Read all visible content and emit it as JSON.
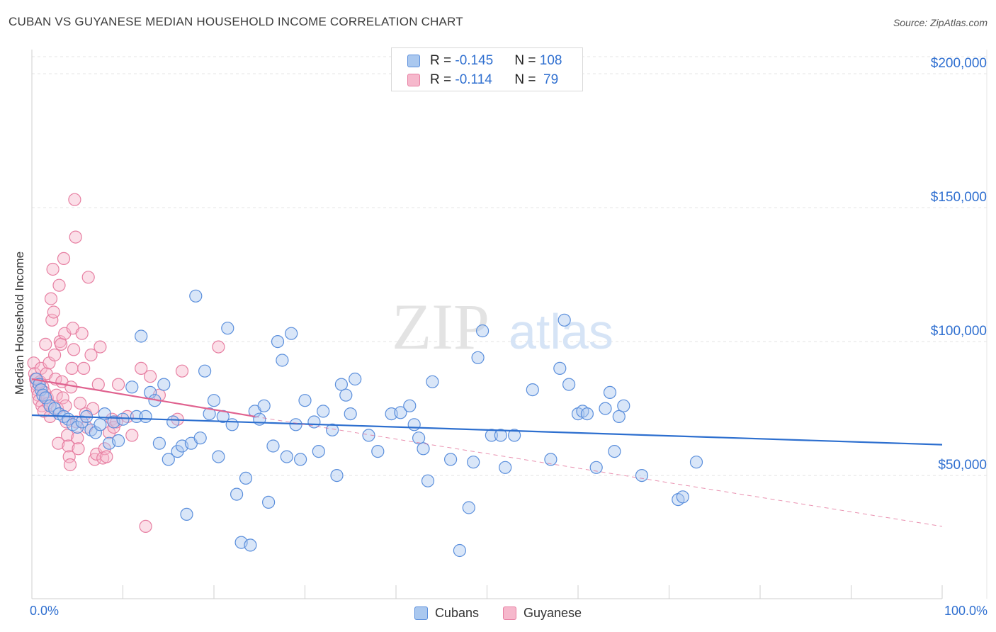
{
  "title": "CUBAN VS GUYANESE MEDIAN HOUSEHOLD INCOME CORRELATION CHART",
  "source": "Source: ZipAtlas.com",
  "watermark": {
    "zip": "ZIP",
    "atlas": "atlas"
  },
  "legend": {
    "rows": [
      {
        "r_label": "R = ",
        "r_value": "-0.145",
        "n_label": "N = ",
        "n_value": "108"
      },
      {
        "r_label": "R = ",
        "r_value": "-0.114",
        "n_label": "N = ",
        "n_value": " 79"
      }
    ]
  },
  "x_axis": {
    "min_label": "0.0%",
    "max_label": "100.0%"
  },
  "series_legend": {
    "cubans": "Cubans",
    "guyanese": "Guyanese"
  },
  "colors": {
    "cubans_fill": "#aac8ef",
    "cubans_stroke": "#5b8fdc",
    "cubans_line": "#2d6fcf",
    "guyanese_fill": "#f6b8cc",
    "guyanese_stroke": "#e77fa2",
    "guyanese_line": "#e0628f",
    "grid": "#e4e4e4",
    "tick_text": "#2f6fd0"
  },
  "chart_data": {
    "type": "scatter",
    "title": "CUBAN VS GUYANESE MEDIAN HOUSEHOLD INCOME CORRELATION CHART",
    "xlabel": "",
    "ylabel": "Median Household Income",
    "xlim": [
      0,
      100
    ],
    "ylim": [
      4000,
      209000
    ],
    "y_ticks": [
      {
        "value": 50000,
        "label": "$50,000"
      },
      {
        "value": 100000,
        "label": "$100,000"
      },
      {
        "value": 150000,
        "label": "$150,000"
      },
      {
        "value": 200000,
        "label": "$200,000"
      }
    ],
    "x_tick_values": [
      0,
      10,
      20,
      30,
      40,
      50,
      60,
      70,
      80,
      90,
      100
    ],
    "series": [
      {
        "name": "Cubans",
        "r": -0.145,
        "n": 108,
        "trend": {
          "x0": 0,
          "y0": 72500,
          "x1": 100,
          "y1": 61500
        },
        "points": [
          [
            0.5,
            86000
          ],
          [
            0.8,
            84000
          ],
          [
            1,
            82000
          ],
          [
            1.2,
            80000
          ],
          [
            1.5,
            79000
          ],
          [
            2,
            76000
          ],
          [
            2.5,
            75000
          ],
          [
            3,
            73000
          ],
          [
            3.5,
            72000
          ],
          [
            4,
            71000
          ],
          [
            4.5,
            69000
          ],
          [
            5,
            68000
          ],
          [
            5.5,
            70000
          ],
          [
            6,
            72000
          ],
          [
            6.5,
            67000
          ],
          [
            7,
            66000
          ],
          [
            7.5,
            69000
          ],
          [
            8,
            73000
          ],
          [
            8.5,
            62000
          ],
          [
            9,
            70000
          ],
          [
            9.5,
            63000
          ],
          [
            10,
            71000
          ],
          [
            11,
            83000
          ],
          [
            11.5,
            72000
          ],
          [
            12,
            102000
          ],
          [
            12.5,
            72000
          ],
          [
            13,
            81000
          ],
          [
            13.5,
            78000
          ],
          [
            14,
            62000
          ],
          [
            14.5,
            84000
          ],
          [
            15,
            56000
          ],
          [
            15.5,
            70000
          ],
          [
            16,
            59000
          ],
          [
            16.5,
            61000
          ],
          [
            17,
            35500
          ],
          [
            17.5,
            62000
          ],
          [
            18,
            117000
          ],
          [
            18.5,
            64000
          ],
          [
            19,
            89000
          ],
          [
            19.5,
            73000
          ],
          [
            20,
            78000
          ],
          [
            20.5,
            57000
          ],
          [
            21,
            72000
          ],
          [
            21.5,
            105000
          ],
          [
            22,
            69000
          ],
          [
            22.5,
            43000
          ],
          [
            23,
            25000
          ],
          [
            23.5,
            49000
          ],
          [
            24,
            24000
          ],
          [
            24.5,
            74000
          ],
          [
            25,
            71000
          ],
          [
            25.5,
            76000
          ],
          [
            26,
            40000
          ],
          [
            26.5,
            61000
          ],
          [
            27,
            100000
          ],
          [
            27.5,
            93000
          ],
          [
            28,
            57000
          ],
          [
            28.5,
            103000
          ],
          [
            29,
            69000
          ],
          [
            29.5,
            56000
          ],
          [
            30,
            78000
          ],
          [
            31,
            70000
          ],
          [
            31.5,
            59000
          ],
          [
            32,
            74000
          ],
          [
            33,
            67000
          ],
          [
            33.5,
            50000
          ],
          [
            34,
            84000
          ],
          [
            34.5,
            80000
          ],
          [
            35,
            73000
          ],
          [
            35.5,
            86000
          ],
          [
            37,
            65000
          ],
          [
            38,
            59000
          ],
          [
            39.5,
            73000
          ],
          [
            40.5,
            73500
          ],
          [
            41.5,
            76000
          ],
          [
            42,
            69000
          ],
          [
            42.5,
            64000
          ],
          [
            43,
            60000
          ],
          [
            43.5,
            48000
          ],
          [
            44,
            85000
          ],
          [
            46,
            56000
          ],
          [
            47,
            22000
          ],
          [
            48,
            38000
          ],
          [
            48.5,
            55000
          ],
          [
            49,
            94000
          ],
          [
            49.5,
            104000
          ],
          [
            50.5,
            65000
          ],
          [
            51.5,
            65000
          ],
          [
            52,
            53000
          ],
          [
            53,
            65000
          ],
          [
            55,
            82000
          ],
          [
            57,
            56000
          ],
          [
            58,
            90000
          ],
          [
            58.5,
            108000
          ],
          [
            59,
            84000
          ],
          [
            60,
            73000
          ],
          [
            60.5,
            74000
          ],
          [
            61,
            73000
          ],
          [
            62,
            53000
          ],
          [
            63,
            75000
          ],
          [
            63.5,
            81000
          ],
          [
            64,
            59000
          ],
          [
            64.5,
            72000
          ],
          [
            65,
            76000
          ],
          [
            67,
            50000
          ],
          [
            71,
            41000
          ],
          [
            71.5,
            42000
          ],
          [
            73,
            55000
          ]
        ]
      },
      {
        "name": "Guyanese",
        "r": -0.114,
        "n": 79,
        "trend": {
          "x0": 0,
          "y0": 86000,
          "x1": 24.5,
          "y1": 72000
        },
        "trend_ext": {
          "x0": 24.5,
          "y0": 72000,
          "x1": 100,
          "y1": 31000
        },
        "points": [
          [
            0.2,
            92000
          ],
          [
            0.3,
            88000
          ],
          [
            0.4,
            86000
          ],
          [
            0.5,
            84000
          ],
          [
            0.6,
            82000
          ],
          [
            0.7,
            80000
          ],
          [
            0.8,
            78000
          ],
          [
            0.9,
            85000
          ],
          [
            1,
            90000
          ],
          [
            1.1,
            76000
          ],
          [
            1.2,
            83000
          ],
          [
            1.3,
            74000
          ],
          [
            1.4,
            81000
          ],
          [
            1.5,
            99000
          ],
          [
            1.6,
            88000
          ],
          [
            1.7,
            79000
          ],
          [
            1.8,
            77000
          ],
          [
            1.9,
            92000
          ],
          [
            2,
            72000
          ],
          [
            2.1,
            116000
          ],
          [
            2.2,
            108000
          ],
          [
            2.3,
            127000
          ],
          [
            2.4,
            111000
          ],
          [
            2.5,
            95000
          ],
          [
            2.6,
            86000
          ],
          [
            2.7,
            80000
          ],
          [
            2.8,
            75000
          ],
          [
            2.9,
            62000
          ],
          [
            3,
            121000
          ],
          [
            3.1,
            100000
          ],
          [
            3.2,
            99000
          ],
          [
            3.3,
            85000
          ],
          [
            3.4,
            79000
          ],
          [
            3.5,
            131000
          ],
          [
            3.6,
            103000
          ],
          [
            3.7,
            76000
          ],
          [
            3.8,
            70000
          ],
          [
            3.9,
            65000
          ],
          [
            4,
            61000
          ],
          [
            4.1,
            57000
          ],
          [
            4.2,
            54000
          ],
          [
            4.3,
            83000
          ],
          [
            4.4,
            90000
          ],
          [
            4.5,
            105000
          ],
          [
            4.6,
            97000
          ],
          [
            4.7,
            153000
          ],
          [
            4.8,
            139000
          ],
          [
            4.9,
            70000
          ],
          [
            5,
            64000
          ],
          [
            5.1,
            60000
          ],
          [
            5.3,
            77000
          ],
          [
            5.5,
            103000
          ],
          [
            5.7,
            90000
          ],
          [
            5.9,
            73000
          ],
          [
            6,
            68000
          ],
          [
            6.2,
            124000
          ],
          [
            6.5,
            95000
          ],
          [
            6.7,
            75000
          ],
          [
            6.9,
            56000
          ],
          [
            7.1,
            58000
          ],
          [
            7.3,
            84000
          ],
          [
            7.5,
            98000
          ],
          [
            7.8,
            56500
          ],
          [
            8,
            60000
          ],
          [
            8.2,
            57000
          ],
          [
            8.5,
            66000
          ],
          [
            8.8,
            71000
          ],
          [
            9,
            68000
          ],
          [
            9.3,
            70000
          ],
          [
            9.5,
            84000
          ],
          [
            10.5,
            72000
          ],
          [
            11,
            65000
          ],
          [
            12,
            90000
          ],
          [
            12.5,
            31000
          ],
          [
            13,
            87000
          ],
          [
            14,
            80000
          ],
          [
            16,
            71000
          ],
          [
            16.5,
            89000
          ],
          [
            20.5,
            98000
          ]
        ]
      }
    ]
  }
}
